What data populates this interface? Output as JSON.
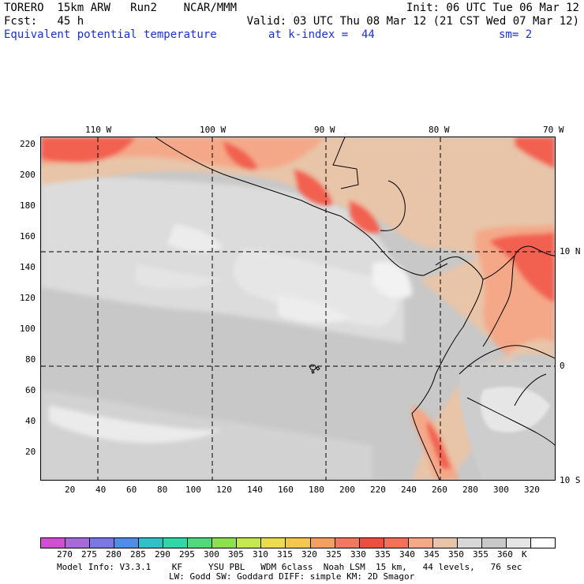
{
  "header": {
    "model": "TORERO",
    "resolution": "15km ARW",
    "run": "Run2",
    "org": "NCAR/MMM",
    "init": "Init: 06 UTC Tue 06 Mar 12",
    "fcst_label": "Fcst:",
    "fcst_value": "45 h",
    "valid": "Valid: 03 UTC Thu 08 Mar 12 (21 CST Wed 07 Mar 12)",
    "field": "Equivalent potential temperature",
    "level": "at k-index =  44",
    "smooth": "sm= 2"
  },
  "map": {
    "top_lon_labels": [
      "110 W",
      "100 W",
      "90 W",
      "80 W",
      "70 W"
    ],
    "right_lat_labels": [
      "10 N",
      "0",
      "10 S"
    ],
    "left_ticks": [
      "220",
      "200",
      "180",
      "160",
      "140",
      "120",
      "100",
      "80",
      "60",
      "40",
      "20"
    ],
    "bottom_ticks": [
      "20",
      "40",
      "60",
      "80",
      "100",
      "120",
      "140",
      "160",
      "180",
      "200",
      "220",
      "240",
      "260",
      "280",
      "300",
      "320"
    ],
    "colors": {
      "ocean_gray": "#c8c8c8",
      "light_gray": "#dcdcdc",
      "white_patch": "#f2f2f2",
      "beige": "#e8c4a8",
      "salmon": "#f4a888",
      "red": "#f26050"
    }
  },
  "colorbar": {
    "colors": [
      "#d24fd2",
      "#a66ad9",
      "#7b78e6",
      "#4f8ee8",
      "#2fc0c8",
      "#2fd8a6",
      "#50d978",
      "#8fe04f",
      "#c6e84f",
      "#eedc4f",
      "#f4c84f",
      "#f4a060",
      "#f07860",
      "#ec5040",
      "#f47058",
      "#f4a888",
      "#e8c4a8",
      "#d8d8d8",
      "#c8c8c8",
      "#e6e6e6",
      "#ffffff"
    ],
    "labels": [
      "270",
      "275",
      "280",
      "285",
      "290",
      "295",
      "300",
      "305",
      "310",
      "315",
      "320",
      "325",
      "330",
      "335",
      "340",
      "345",
      "350",
      "355",
      "360",
      "K"
    ]
  },
  "footer": {
    "line1": "Model Info: V3.3.1    KF     YSU PBL   WDM 6class  Noah LSM  15 km,   44 levels,   76 sec",
    "line2": "LW: Godd SW: Goddard DIFF: simple KM: 2D Smagor"
  }
}
